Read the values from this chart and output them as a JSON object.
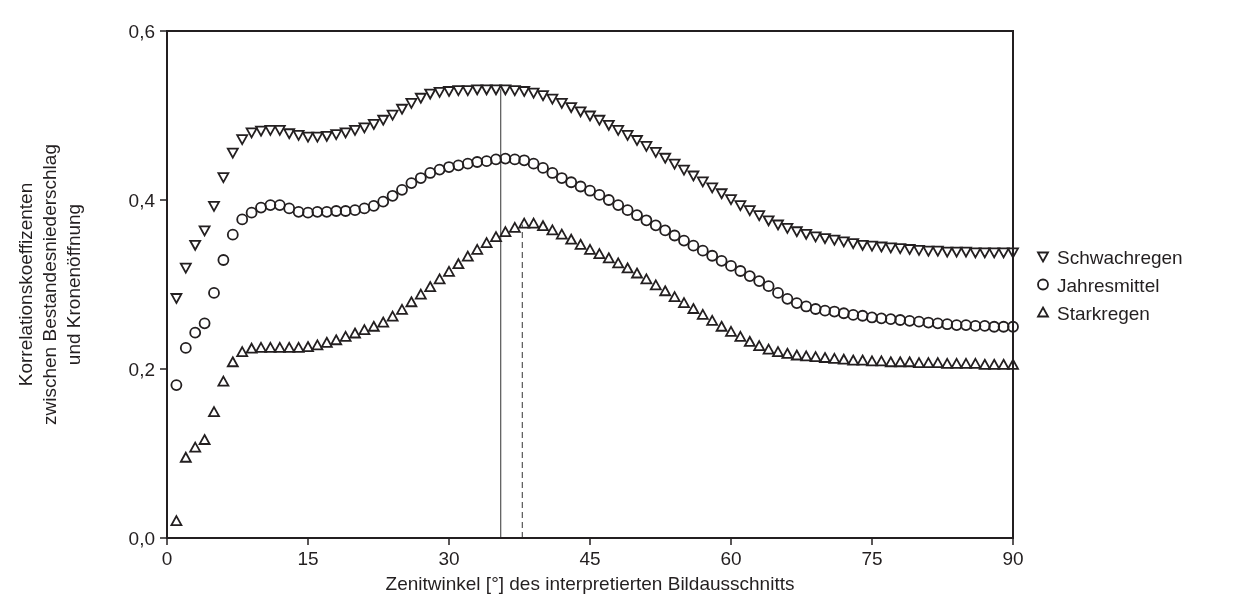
{
  "chart_data": {
    "type": "scatter",
    "xlabel": "Zenitwinkel [°] des interpretierten Bildausschnitts",
    "ylabel": "Korrelationskoeffizenten\nzwischen Bestandesniederschlag\nund Kronenöffnung",
    "x": [
      1,
      2,
      3,
      4,
      5,
      6,
      7,
      8,
      9,
      10,
      11,
      12,
      13,
      14,
      15,
      16,
      17,
      18,
      19,
      20,
      21,
      22,
      23,
      24,
      25,
      26,
      27,
      28,
      29,
      30,
      31,
      32,
      33,
      34,
      35,
      36,
      37,
      38,
      39,
      40,
      41,
      42,
      43,
      44,
      45,
      46,
      47,
      48,
      49,
      50,
      51,
      52,
      53,
      54,
      55,
      56,
      57,
      58,
      59,
      60,
      61,
      62,
      63,
      64,
      65,
      66,
      67,
      68,
      69,
      70,
      71,
      72,
      73,
      74,
      75,
      76,
      77,
      78,
      79,
      80,
      81,
      82,
      83,
      84,
      85,
      86,
      87,
      88,
      89,
      90
    ],
    "series": [
      {
        "name": "Schwachregen",
        "color": "#231f20",
        "marker": "triangle-down",
        "values": [
          0.284,
          0.32,
          0.347,
          0.364,
          0.393,
          0.427,
          0.456,
          0.472,
          0.48,
          0.482,
          0.483,
          0.483,
          0.479,
          0.477,
          0.475,
          0.475,
          0.476,
          0.478,
          0.48,
          0.483,
          0.486,
          0.49,
          0.495,
          0.501,
          0.508,
          0.515,
          0.521,
          0.526,
          0.528,
          0.529,
          0.53,
          0.53,
          0.531,
          0.531,
          0.531,
          0.531,
          0.53,
          0.529,
          0.527,
          0.524,
          0.52,
          0.515,
          0.51,
          0.505,
          0.5,
          0.495,
          0.489,
          0.483,
          0.477,
          0.471,
          0.464,
          0.457,
          0.45,
          0.443,
          0.436,
          0.429,
          0.422,
          0.415,
          0.408,
          0.401,
          0.394,
          0.388,
          0.382,
          0.376,
          0.371,
          0.367,
          0.363,
          0.36,
          0.357,
          0.355,
          0.353,
          0.351,
          0.349,
          0.347,
          0.346,
          0.345,
          0.344,
          0.343,
          0.342,
          0.341,
          0.34,
          0.34,
          0.339,
          0.339,
          0.339,
          0.338,
          0.338,
          0.338,
          0.338,
          0.338
        ]
      },
      {
        "name": "Jahresmittel",
        "color": "#231f20",
        "marker": "circle",
        "values": [
          0.181,
          0.225,
          0.243,
          0.254,
          0.29,
          0.329,
          0.359,
          0.377,
          0.385,
          0.391,
          0.394,
          0.394,
          0.39,
          0.386,
          0.385,
          0.386,
          0.386,
          0.387,
          0.387,
          0.388,
          0.39,
          0.393,
          0.398,
          0.405,
          0.412,
          0.42,
          0.426,
          0.432,
          0.436,
          0.439,
          0.441,
          0.443,
          0.445,
          0.446,
          0.448,
          0.449,
          0.448,
          0.447,
          0.443,
          0.438,
          0.432,
          0.426,
          0.421,
          0.416,
          0.411,
          0.406,
          0.4,
          0.394,
          0.388,
          0.382,
          0.376,
          0.37,
          0.364,
          0.358,
          0.352,
          0.346,
          0.34,
          0.334,
          0.328,
          0.322,
          0.316,
          0.31,
          0.304,
          0.298,
          0.29,
          0.283,
          0.278,
          0.274,
          0.271,
          0.269,
          0.268,
          0.266,
          0.264,
          0.263,
          0.261,
          0.26,
          0.259,
          0.258,
          0.257,
          0.256,
          0.255,
          0.254,
          0.253,
          0.252,
          0.252,
          0.251,
          0.251,
          0.25,
          0.25,
          0.25
        ]
      },
      {
        "name": "Starkregen",
        "color": "#231f20",
        "marker": "triangle",
        "values": [
          0.02,
          0.095,
          0.107,
          0.116,
          0.149,
          0.185,
          0.208,
          0.22,
          0.224,
          0.225,
          0.225,
          0.225,
          0.225,
          0.225,
          0.226,
          0.228,
          0.231,
          0.234,
          0.238,
          0.242,
          0.246,
          0.25,
          0.255,
          0.262,
          0.27,
          0.279,
          0.288,
          0.297,
          0.306,
          0.315,
          0.324,
          0.333,
          0.341,
          0.349,
          0.356,
          0.362,
          0.367,
          0.372,
          0.372,
          0.369,
          0.364,
          0.359,
          0.353,
          0.347,
          0.341,
          0.336,
          0.331,
          0.325,
          0.319,
          0.313,
          0.306,
          0.299,
          0.292,
          0.285,
          0.278,
          0.271,
          0.264,
          0.257,
          0.25,
          0.244,
          0.238,
          0.232,
          0.227,
          0.223,
          0.22,
          0.218,
          0.216,
          0.215,
          0.214,
          0.213,
          0.212,
          0.211,
          0.21,
          0.21,
          0.209,
          0.209,
          0.208,
          0.208,
          0.208,
          0.207,
          0.207,
          0.207,
          0.206,
          0.206,
          0.206,
          0.206,
          0.205,
          0.205,
          0.205,
          0.205
        ]
      }
    ],
    "xlim": [
      0,
      90
    ],
    "xticks": [
      0,
      15,
      30,
      45,
      60,
      75,
      90
    ],
    "ylim": [
      0,
      0.6
    ],
    "yticks": [
      {
        "value": 0,
        "label": "0,0"
      },
      {
        "value": 0.2,
        "label": "0,2"
      },
      {
        "value": 0.4,
        "label": "0,4"
      },
      {
        "value": 0.6,
        "label": "0,6"
      }
    ],
    "ref_lines": [
      {
        "axis": "x",
        "value": 35.5,
        "color": "#555555",
        "line_style": "solid"
      },
      {
        "axis": "x",
        "value": 37.8,
        "color": "#555555",
        "line_style": "dashed"
      }
    ],
    "grid": false,
    "legend": "right"
  }
}
